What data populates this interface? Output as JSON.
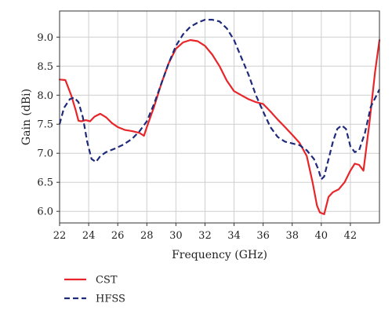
{
  "chart_data": {
    "type": "line",
    "title": "",
    "xlabel": "Frequency (GHz)",
    "ylabel": "Gain (dBi)",
    "xlim": [
      22,
      44
    ],
    "ylim": [
      5.8,
      9.45
    ],
    "xticks": [
      22,
      24,
      26,
      28,
      30,
      32,
      34,
      36,
      38,
      40,
      42
    ],
    "xtick_labels": [
      "22",
      "24",
      "26",
      "28",
      "30",
      "32",
      "34",
      "36",
      "38",
      "40",
      "42"
    ],
    "yticks": [
      6.0,
      6.5,
      7.0,
      7.5,
      8.0,
      8.5,
      9.0
    ],
    "ytick_labels": [
      "6.0",
      "6.5",
      "7.0",
      "7.5",
      "8.0",
      "8.5",
      "9.0"
    ],
    "grid": true,
    "legend_position": "bottom-left, outside plot",
    "series": [
      {
        "name": "CST",
        "color": "#e8262a",
        "style": "solid",
        "x": [
          22,
          22.4,
          22.8,
          23.1,
          23.3,
          23.5,
          23.8,
          24.1,
          24.4,
          24.8,
          25.2,
          25.6,
          26.0,
          26.5,
          27.0,
          27.5,
          27.8,
          28.0,
          28.5,
          29.0,
          29.5,
          30.0,
          30.5,
          31.0,
          31.5,
          32.0,
          32.5,
          33.0,
          33.5,
          34.0,
          34.5,
          35.0,
          35.5,
          36.0,
          36.5,
          37.0,
          37.5,
          38.0,
          38.5,
          39.0,
          39.4,
          39.7,
          39.9,
          40.0,
          40.2,
          40.5,
          40.8,
          41.2,
          41.6,
          42.0,
          42.3,
          42.6,
          42.9,
          43.3,
          43.7,
          44.0
        ],
        "values": [
          8.27,
          8.26,
          8.0,
          7.75,
          7.56,
          7.55,
          7.57,
          7.55,
          7.63,
          7.68,
          7.62,
          7.52,
          7.45,
          7.4,
          7.38,
          7.35,
          7.3,
          7.45,
          7.8,
          8.2,
          8.55,
          8.8,
          8.91,
          8.95,
          8.93,
          8.85,
          8.7,
          8.5,
          8.25,
          8.07,
          8.0,
          7.93,
          7.88,
          7.85,
          7.72,
          7.58,
          7.45,
          7.32,
          7.18,
          6.95,
          6.5,
          6.1,
          5.98,
          5.97,
          5.95,
          6.25,
          6.33,
          6.38,
          6.5,
          6.7,
          6.82,
          6.8,
          6.7,
          7.5,
          8.4,
          8.95
        ]
      },
      {
        "name": "HFSS",
        "color": "#1e2a7a",
        "style": "dashed",
        "x": [
          22,
          22.3,
          22.7,
          23.0,
          23.3,
          23.6,
          23.9,
          24.2,
          24.5,
          24.8,
          25.2,
          25.8,
          26.4,
          27.0,
          27.5,
          28.0,
          28.5,
          29.0,
          29.5,
          30.0,
          30.5,
          31.0,
          31.5,
          32.0,
          32.5,
          33.0,
          33.5,
          34.0,
          34.5,
          35.0,
          35.5,
          36.0,
          36.5,
          37.0,
          37.5,
          38.0,
          38.5,
          39.0,
          39.5,
          39.8,
          40.0,
          40.2,
          40.5,
          40.8,
          41.1,
          41.4,
          41.7,
          42.0,
          42.3,
          42.6,
          43.0,
          43.4,
          43.8,
          44.0
        ],
        "values": [
          7.5,
          7.78,
          7.93,
          7.96,
          7.88,
          7.62,
          7.2,
          6.9,
          6.85,
          6.95,
          7.02,
          7.08,
          7.15,
          7.25,
          7.38,
          7.55,
          7.85,
          8.2,
          8.55,
          8.85,
          9.05,
          9.18,
          9.25,
          9.3,
          9.3,
          9.27,
          9.15,
          8.95,
          8.65,
          8.35,
          8.0,
          7.72,
          7.45,
          7.28,
          7.2,
          7.17,
          7.14,
          7.05,
          6.9,
          6.72,
          6.55,
          6.6,
          6.9,
          7.2,
          7.42,
          7.48,
          7.42,
          7.12,
          7.02,
          7.05,
          7.35,
          7.8,
          8.0,
          8.1
        ]
      }
    ]
  }
}
